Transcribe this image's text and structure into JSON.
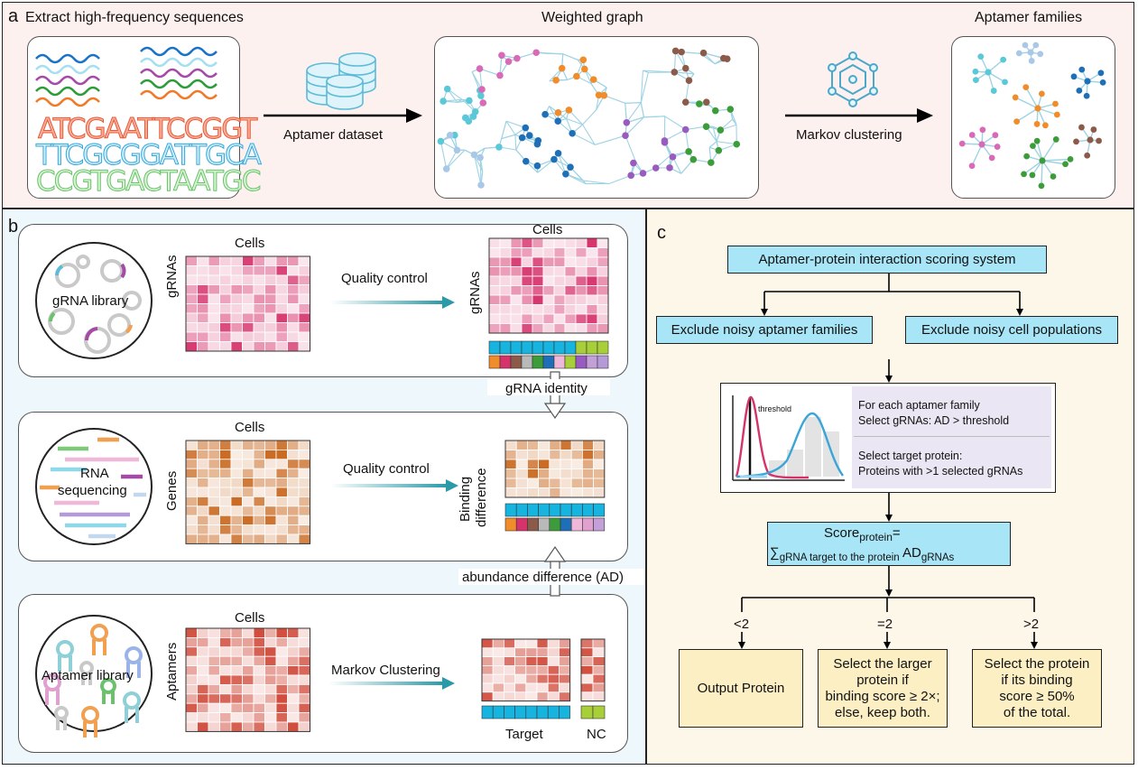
{
  "panel_a": {
    "label": "a",
    "title_left": "Extract high-frequency sequences",
    "title_mid": "Weighted graph",
    "title_right": "Aptamer families",
    "seq_lines": [
      "ATCGAATTCCGGT",
      "TTCGCGGATTGCA",
      "CCGTGACTAATGC"
    ],
    "arrow1_label": "Aptamer dataset",
    "arrow2_label": "Markov clustering"
  },
  "panel_b": {
    "label": "b",
    "row1": {
      "circle_label": "gRNA library",
      "cells": "Cells",
      "ylabel": "gRNAs",
      "arrow": "Quality control",
      "cells_right": "Cells",
      "ylabel_right": "gRNAs"
    },
    "identity_label": "gRNA identity",
    "row2": {
      "circle_label_1": "RNA",
      "circle_label_2": "sequencing",
      "cells": "Cells",
      "ylabel": "Genes",
      "arrow": "Quality control",
      "ylabel_right_1": "Binding",
      "ylabel_right_2": "difference"
    },
    "ad_label": "abundance difference (AD)",
    "row3": {
      "circle_label": "Aptamer library",
      "cells": "Cells",
      "ylabel": "Aptamers",
      "arrow": "Markov Clustering",
      "target": "Target",
      "nc": "NC"
    }
  },
  "panel_c": {
    "label": "c",
    "scoring_system": "Aptamer-protein interaction scoring system",
    "exclude_families": "Exclude noisy aptamer families",
    "exclude_cells": "Exclude noisy cell populations",
    "threshold_label": "threshold",
    "step1_line1": "For each aptamer family",
    "step1_line2": "Select gRNAs: AD > threshold",
    "step2_line1": "Select target protein:",
    "step2_line2": "Proteins with >1 selected gRNAs",
    "score_main": "Score",
    "score_sub": "protein",
    "score_eq": "=",
    "sum_symbol": "∑",
    "sum_sub": "gRNA target to the protein",
    "sum_main": " AD",
    "sum_sub2": "gRNAs",
    "branch_lt": "<2",
    "branch_eq": "=2",
    "branch_gt": ">2",
    "out1": "Output Protein",
    "out2_1": "Select the larger",
    "out2_2": "protein  if",
    "out2_3": "binding score ≥ 2×;",
    "out2_4": "else, keep both.",
    "out3_1": "Select the protein",
    "out3_2": "if its binding",
    "out3_3": "score ≥ 50%",
    "out3_4": "of the total."
  },
  "colors": {
    "panel_a_bg": "#fdf1ef",
    "panel_b_bg": "#eef7fb",
    "panel_c_bg": "#fdf7ea",
    "box_blue": "#a8e6f7",
    "box_yellow": "#fbefc3",
    "teal_arrow": "#2a9aa8",
    "pink_heat": "#d6336c",
    "orange_heat": "#c8661c",
    "red_heat": "#d04a3a"
  }
}
